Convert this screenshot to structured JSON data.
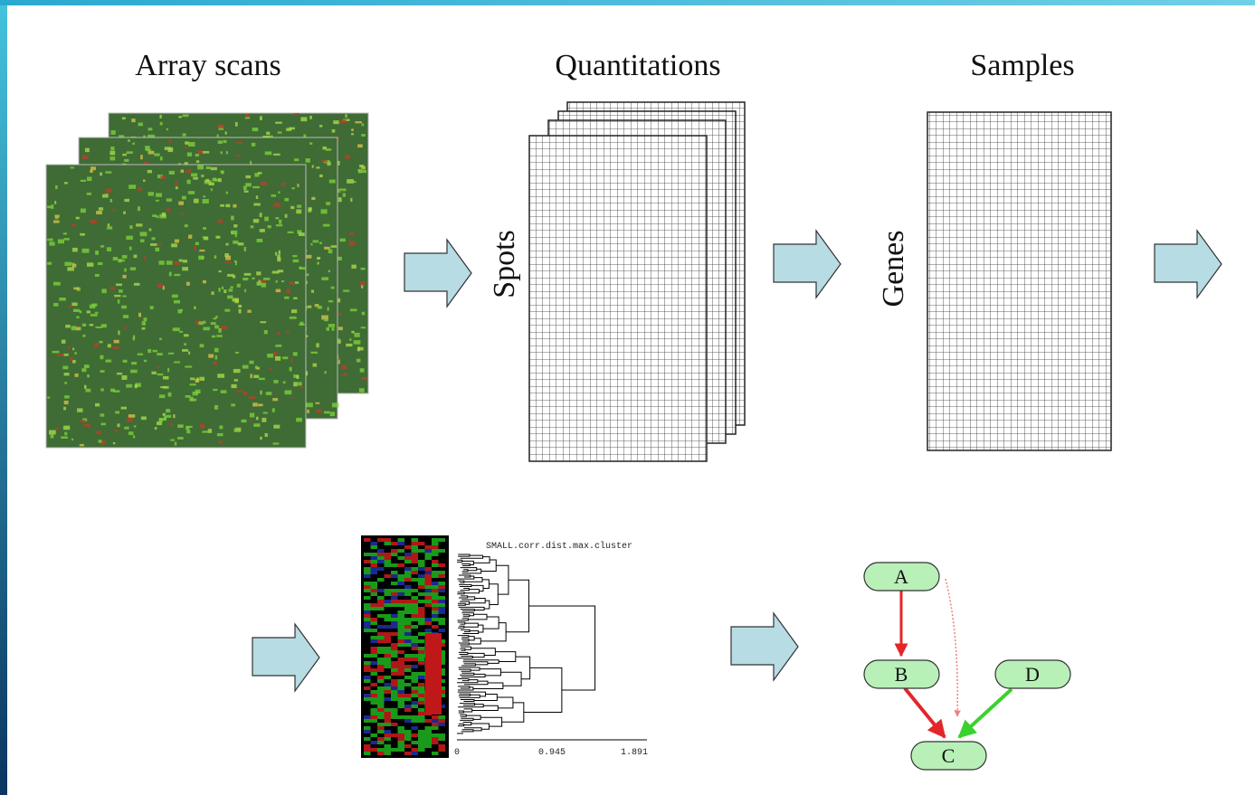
{
  "steps": {
    "array_scans": "Array scans",
    "quantitations": "Quantitations",
    "samples": "Samples",
    "spots": "Spots",
    "genes": "Genes"
  },
  "dendrogram": {
    "title": "SMALL.corr.dist.max.cluster",
    "axis_labels": [
      "0",
      "0.945",
      "1.891"
    ]
  },
  "network": {
    "nodes": [
      {
        "label": "A"
      },
      {
        "label": "B"
      },
      {
        "label": "C"
      },
      {
        "label": "D"
      }
    ]
  }
}
